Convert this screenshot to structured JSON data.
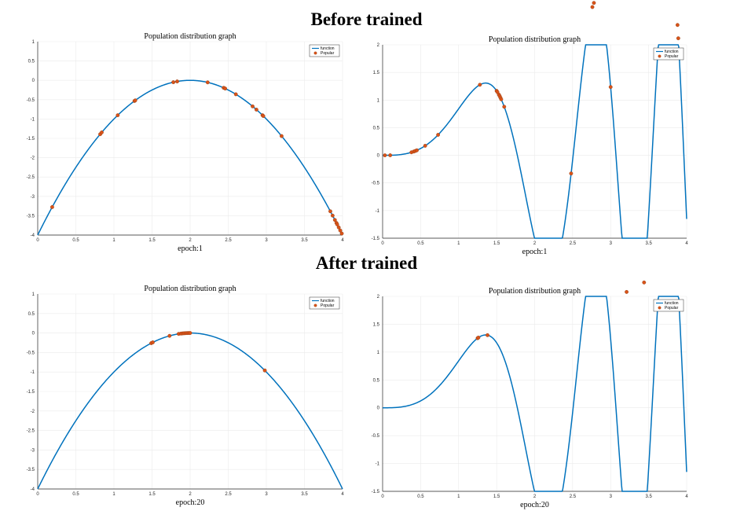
{
  "headings": {
    "before": "Before trained",
    "after": "After trained"
  },
  "colors": {
    "line": "#0072BD",
    "marker": "#D95319",
    "grid": "#ebebeb",
    "axis": "#262626"
  },
  "chart_data": [
    {
      "id": "before-left",
      "type": "line",
      "title": "Population distribution graph",
      "xlabel": "epoch:1",
      "function": "quadratic",
      "xlim": [
        0,
        4
      ],
      "ylim": [
        -4,
        1
      ],
      "xticks": [
        0,
        0.5,
        1,
        1.5,
        2,
        2.5,
        3,
        3.5,
        4
      ],
      "yticks": [
        -4,
        -3.5,
        -3,
        -2.5,
        -2,
        -1.5,
        -1,
        -0.5,
        0,
        0.5,
        1
      ],
      "xtick_labels": [
        "0",
        "0.5",
        "1",
        "1.5",
        "2",
        "2.5",
        "3",
        "3.5",
        "4"
      ],
      "ytick_labels": [
        "-4",
        "-3.5",
        "-3",
        "-2.5",
        "-2",
        "-1.5",
        "-1",
        "-0.5",
        "0",
        "0.5",
        "1"
      ],
      "legend": {
        "position": "top-right",
        "entries": [
          "function",
          "Popular"
        ]
      },
      "series": [
        {
          "name": "function",
          "style": "line"
        },
        {
          "name": "Popular",
          "style": "marker",
          "x": [
            0.19,
            0.82,
            0.84,
            1.05,
            1.27,
            1.28,
            1.78,
            1.83,
            2.23,
            2.44,
            2.46,
            2.6,
            2.82,
            2.87,
            2.95,
            2.96,
            3.2,
            3.84,
            3.87,
            3.9,
            3.92,
            3.93,
            3.95,
            3.97,
            3.99
          ]
        }
      ]
    },
    {
      "id": "before-right",
      "type": "line",
      "title": "Population distribution graph",
      "xlabel": "epoch:1",
      "function": "wave",
      "xlim": [
        0,
        4
      ],
      "ylim": [
        -1.5,
        2
      ],
      "xticks": [
        0,
        0.5,
        1,
        1.5,
        2,
        2.5,
        3,
        3.5,
        4
      ],
      "yticks": [
        -1.5,
        -1,
        -0.5,
        0,
        0.5,
        1,
        1.5,
        2
      ],
      "xtick_labels": [
        "0",
        "0.5",
        "1",
        "1.5",
        "2",
        "2.5",
        "3",
        "3.5",
        "4"
      ],
      "ytick_labels": [
        "-1.5",
        "-1",
        "-0.5",
        "0",
        "0.5",
        "1",
        "1.5",
        "2"
      ],
      "legend": {
        "position": "top-right",
        "entries": [
          "function",
          "Popular"
        ]
      },
      "series": [
        {
          "name": "function",
          "style": "line"
        },
        {
          "name": "Popular",
          "style": "marker",
          "x": [
            0.03,
            0.1,
            0.38,
            0.41,
            0.43,
            0.45,
            0.56,
            0.73,
            1.28,
            1.5,
            1.51,
            1.53,
            1.54,
            1.55,
            1.56,
            1.6,
            2.48,
            2.76,
            2.78,
            3.0,
            3.21,
            3.44,
            3.62,
            3.88,
            3.89
          ]
        }
      ]
    },
    {
      "id": "after-left",
      "type": "line",
      "title": "Population distribution graph",
      "xlabel": "epoch:20",
      "function": "quadratic",
      "xlim": [
        0,
        4
      ],
      "ylim": [
        -4,
        1
      ],
      "xticks": [
        0,
        0.5,
        1,
        1.5,
        2,
        2.5,
        3,
        3.5,
        4
      ],
      "yticks": [
        -4,
        -3.5,
        -3,
        -2.5,
        -2,
        -1.5,
        -1,
        -0.5,
        0,
        0.5,
        1
      ],
      "xtick_labels": [
        "0",
        "0.5",
        "1",
        "1.5",
        "2",
        "2.5",
        "3",
        "3.5",
        "4"
      ],
      "ytick_labels": [
        "-4",
        "-3.5",
        "-3",
        "-2.5",
        "-2",
        "-1.5",
        "-1",
        "-0.5",
        "0",
        "0.5",
        "1"
      ],
      "legend": {
        "position": "top-right",
        "entries": [
          "function",
          "Popular"
        ]
      },
      "series": [
        {
          "name": "function",
          "style": "line"
        },
        {
          "name": "Popular",
          "style": "marker",
          "x": [
            1.49,
            1.51,
            1.73,
            1.85,
            1.88,
            1.9,
            1.92,
            1.94,
            1.96,
            1.98,
            2.0,
            2.98
          ]
        }
      ]
    },
    {
      "id": "after-right",
      "type": "line",
      "title": "Population distribution graph",
      "xlabel": "epoch:20",
      "function": "wave",
      "xlim": [
        0,
        4
      ],
      "ylim": [
        -1.5,
        2
      ],
      "xticks": [
        0,
        0.5,
        1,
        1.5,
        2,
        2.5,
        3,
        3.5,
        4
      ],
      "yticks": [
        -1.5,
        -1,
        -0.5,
        0,
        0.5,
        1,
        1.5,
        2
      ],
      "xtick_labels": [
        "0",
        "0.5",
        "1",
        "1.5",
        "2",
        "2.5",
        "3",
        "3.5",
        "4"
      ],
      "ytick_labels": [
        "-1.5",
        "-1",
        "-0.5",
        "0",
        "0.5",
        "1",
        "1.5",
        "2"
      ],
      "legend": {
        "position": "top-right",
        "entries": [
          "function",
          "Popular"
        ]
      },
      "series": [
        {
          "name": "function",
          "style": "line"
        },
        {
          "name": "Popular",
          "style": "marker",
          "x": [
            1.25,
            1.26,
            1.38
          ]
        }
      ]
    }
  ]
}
